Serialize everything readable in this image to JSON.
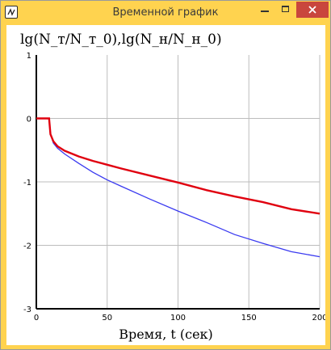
{
  "window": {
    "title": "Временной график",
    "icon": "plot-app-icon",
    "buttons": {
      "minimize": "minimize-icon",
      "maximize": "maximize-icon",
      "close": "close-icon"
    }
  },
  "colors": {
    "titlebar": "#ffd34f",
    "close": "#c9463d",
    "series_red": "#e0000f",
    "series_blue": "#3a3af0",
    "grid": "#bdbdbd"
  },
  "chart_data": {
    "type": "line",
    "title": "lg(N_т/N_т_0),lg(N_н/N_н_0)",
    "xlabel": "Время, t (сек)",
    "ylabel": "",
    "xlim": [
      0,
      200
    ],
    "ylim": [
      -3,
      1
    ],
    "xticks": [
      "0",
      "50",
      "100",
      "150",
      "200"
    ],
    "yticks": [
      "1",
      "0",
      "-1",
      "-2",
      "-3"
    ],
    "grid": true,
    "series": [
      {
        "color": "#e0000f",
        "x": [
          0,
          9,
          10,
          12,
          15,
          20,
          30,
          40,
          50,
          60,
          80,
          100,
          120,
          140,
          160,
          180,
          200
        ],
        "y": [
          0,
          0,
          -0.25,
          -0.36,
          -0.44,
          -0.51,
          -0.6,
          -0.67,
          -0.73,
          -0.79,
          -0.9,
          -1.01,
          -1.13,
          -1.23,
          -1.32,
          -1.43,
          -1.5
        ]
      },
      {
        "color": "#3a3af0",
        "x": [
          0,
          9,
          10,
          12,
          15,
          20,
          30,
          40,
          50,
          60,
          80,
          100,
          120,
          140,
          160,
          180,
          200
        ],
        "y": [
          0,
          0,
          -0.25,
          -0.39,
          -0.47,
          -0.56,
          -0.71,
          -0.85,
          -0.97,
          -1.07,
          -1.27,
          -1.46,
          -1.64,
          -1.83,
          -1.97,
          -2.1,
          -2.18
        ]
      }
    ]
  }
}
